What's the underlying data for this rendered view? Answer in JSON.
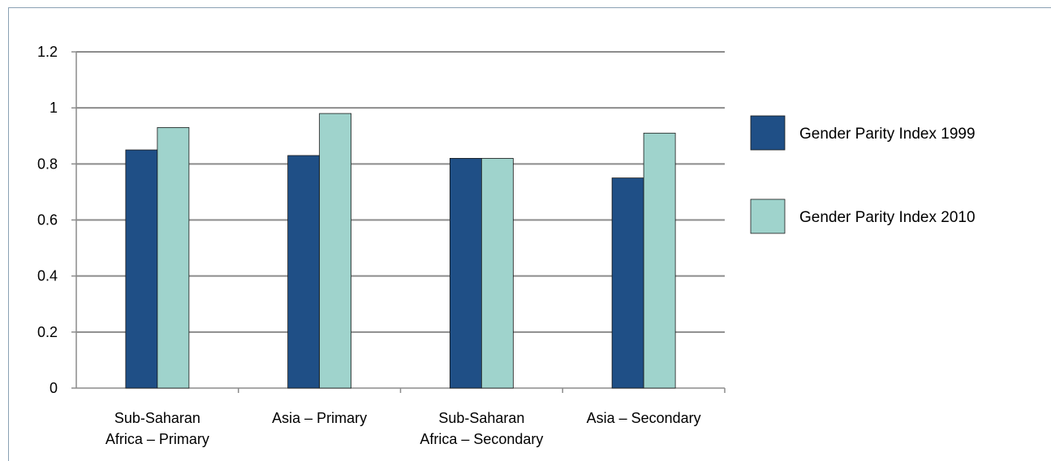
{
  "chart_data": {
    "type": "bar",
    "title": "",
    "xlabel": "",
    "ylabel": "",
    "ylim": [
      0,
      1.2
    ],
    "yticks": [
      "0",
      "0.2",
      "0.4",
      "0.6",
      "0.8",
      "1",
      "1.2"
    ],
    "grid": true,
    "legend_position": "right",
    "categories": [
      [
        "Sub-Saharan",
        "Africa – Primary"
      ],
      [
        "Asia – Primary"
      ],
      [
        "Sub-Saharan",
        "Africa – Secondary"
      ],
      [
        "Asia – Secondary"
      ]
    ],
    "series": [
      {
        "name": "Gender Parity Index 1999",
        "color": "#1f4f86",
        "values": [
          0.85,
          0.83,
          0.82,
          0.75
        ]
      },
      {
        "name": "Gender Parity Index 2010",
        "color": "#9fd3cc",
        "values": [
          0.93,
          0.98,
          0.82,
          0.91
        ]
      }
    ]
  }
}
